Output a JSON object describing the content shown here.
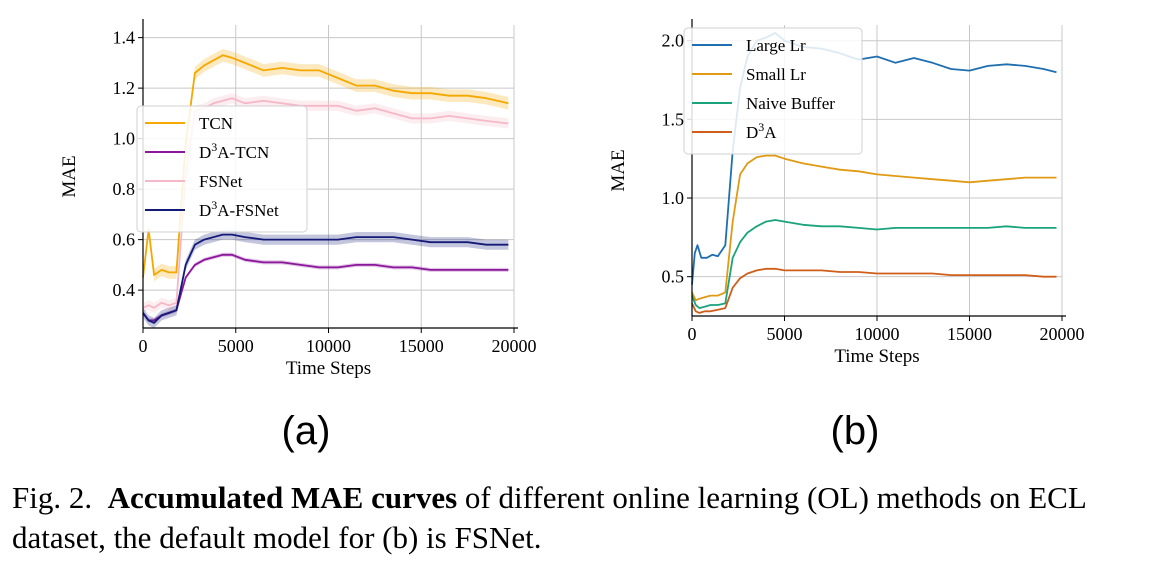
{
  "figure": {
    "caption_prefix": "Fig. 2.",
    "caption_bold": "Accumulated MAE curves",
    "caption_rest": " of different online learning (OL) methods on ECL dataset, the default model for (b) is FSNet."
  },
  "chart_data": [
    {
      "type": "line",
      "panel_label": "(a)",
      "xlabel": "Time Steps",
      "ylabel": "MAE",
      "xlim": [
        0,
        20000
      ],
      "ylim": [
        0.25,
        1.45
      ],
      "xticks": [
        0,
        5000,
        10000,
        15000,
        20000
      ],
      "xtick_labels": [
        "0",
        "5000",
        "10000",
        "15000",
        "20000"
      ],
      "yticks": [
        0.4,
        0.6,
        0.8,
        1.0,
        1.2,
        1.4
      ],
      "ytick_labels": [
        "0.4",
        "0.6",
        "0.8",
        "1.0",
        "1.2",
        "1.4"
      ],
      "grid": true,
      "legend_position": "center-left",
      "series": [
        {
          "name": "TCN",
          "legend_base": "TCN",
          "legend_sup": "",
          "legend_tail": "",
          "color": "#f5a800",
          "band": 0.025,
          "x": [
            0,
            300,
            600,
            1000,
            1400,
            1800,
            2300,
            2800,
            3300,
            3800,
            4300,
            4800,
            5500,
            6500,
            7500,
            8500,
            9500,
            10500,
            11500,
            12500,
            13500,
            14500,
            15500,
            16500,
            17500,
            18500,
            19700
          ],
          "y": [
            0.45,
            0.64,
            0.46,
            0.48,
            0.47,
            0.47,
            0.98,
            1.26,
            1.29,
            1.31,
            1.33,
            1.32,
            1.3,
            1.27,
            1.28,
            1.27,
            1.27,
            1.24,
            1.21,
            1.21,
            1.19,
            1.18,
            1.18,
            1.17,
            1.17,
            1.16,
            1.14
          ]
        },
        {
          "name": "D3A-TCN",
          "legend_base": "D",
          "legend_sup": "3",
          "legend_tail": "A-TCN",
          "color": "#8b189a",
          "band": 0.008,
          "x": [
            0,
            300,
            600,
            1000,
            1400,
            1800,
            2300,
            2800,
            3300,
            3800,
            4300,
            4800,
            5500,
            6500,
            7500,
            8500,
            9500,
            10500,
            11500,
            12500,
            13500,
            14500,
            15500,
            16500,
            17500,
            18500,
            19700
          ],
          "y": [
            0.31,
            0.28,
            0.28,
            0.3,
            0.31,
            0.32,
            0.45,
            0.5,
            0.52,
            0.53,
            0.54,
            0.54,
            0.52,
            0.51,
            0.51,
            0.5,
            0.49,
            0.49,
            0.5,
            0.5,
            0.49,
            0.49,
            0.48,
            0.48,
            0.48,
            0.48,
            0.48
          ]
        },
        {
          "name": "FSNet",
          "legend_base": "FSNet",
          "legend_sup": "",
          "legend_tail": "",
          "color": "#f5b8c8",
          "band": 0.02,
          "x": [
            0,
            300,
            600,
            1000,
            1400,
            1800,
            2300,
            2800,
            3300,
            3800,
            4300,
            4800,
            5500,
            6500,
            7500,
            8500,
            9500,
            10500,
            11500,
            12500,
            13500,
            14500,
            15500,
            16500,
            17500,
            18500,
            19700
          ],
          "y": [
            0.33,
            0.34,
            0.33,
            0.35,
            0.34,
            0.35,
            0.85,
            1.11,
            1.12,
            1.14,
            1.15,
            1.16,
            1.14,
            1.15,
            1.14,
            1.13,
            1.13,
            1.13,
            1.11,
            1.12,
            1.1,
            1.08,
            1.08,
            1.09,
            1.08,
            1.07,
            1.06
          ]
        },
        {
          "name": "D3A-FSNet",
          "legend_base": "D",
          "legend_sup": "3",
          "legend_tail": "A-FSNet",
          "color": "#141a78",
          "band": 0.02,
          "x": [
            0,
            300,
            600,
            1000,
            1400,
            1800,
            2300,
            2800,
            3300,
            3800,
            4300,
            4800,
            5500,
            6500,
            7500,
            8500,
            9500,
            10500,
            11500,
            12500,
            13500,
            14500,
            15500,
            16500,
            17500,
            18500,
            19700
          ],
          "y": [
            0.31,
            0.28,
            0.27,
            0.3,
            0.31,
            0.32,
            0.5,
            0.58,
            0.6,
            0.61,
            0.62,
            0.62,
            0.61,
            0.6,
            0.6,
            0.6,
            0.6,
            0.6,
            0.61,
            0.61,
            0.61,
            0.6,
            0.59,
            0.59,
            0.59,
            0.58,
            0.58
          ]
        }
      ]
    },
    {
      "type": "line",
      "panel_label": "(b)",
      "xlabel": "Time Steps",
      "ylabel": "MAE",
      "xlim": [
        0,
        20000
      ],
      "ylim": [
        0.25,
        2.1
      ],
      "xticks": [
        0,
        5000,
        10000,
        15000,
        20000
      ],
      "xtick_labels": [
        "0",
        "5000",
        "10000",
        "15000",
        "20000"
      ],
      "yticks": [
        0.5,
        1.0,
        1.5,
        2.0
      ],
      "ytick_labels": [
        "0.5",
        "1.0",
        "1.5",
        "2.0"
      ],
      "grid": true,
      "legend_position": "upper-left",
      "series": [
        {
          "name": "Large Lr",
          "legend_base": "Large Lr",
          "legend_sup": "",
          "legend_tail": "",
          "color": "#1f6fb0",
          "x": [
            0,
            150,
            300,
            500,
            800,
            1100,
            1400,
            1800,
            2200,
            2600,
            3000,
            3500,
            4000,
            4500,
            5000,
            6000,
            7000,
            8000,
            9000,
            10000,
            11000,
            12000,
            13000,
            14000,
            15000,
            16000,
            17000,
            18000,
            19000,
            19700
          ],
          "y": [
            0.45,
            0.65,
            0.7,
            0.62,
            0.62,
            0.64,
            0.63,
            0.7,
            1.3,
            1.7,
            1.9,
            2.0,
            2.02,
            2.05,
            2.0,
            1.96,
            1.95,
            1.92,
            1.88,
            1.9,
            1.86,
            1.89,
            1.86,
            1.82,
            1.81,
            1.84,
            1.85,
            1.84,
            1.82,
            1.8
          ]
        },
        {
          "name": "Small Lr",
          "legend_base": "Small Lr",
          "legend_sup": "",
          "legend_tail": "",
          "color": "#e09a14",
          "x": [
            0,
            200,
            400,
            700,
            1000,
            1400,
            1800,
            2200,
            2600,
            3000,
            3500,
            4000,
            4500,
            5000,
            6000,
            7000,
            8000,
            9000,
            10000,
            11000,
            12000,
            13000,
            14000,
            15000,
            16000,
            17000,
            18000,
            19000,
            19700
          ],
          "y": [
            0.4,
            0.35,
            0.36,
            0.37,
            0.38,
            0.38,
            0.4,
            0.85,
            1.15,
            1.22,
            1.26,
            1.27,
            1.27,
            1.25,
            1.22,
            1.2,
            1.18,
            1.17,
            1.15,
            1.14,
            1.13,
            1.12,
            1.11,
            1.1,
            1.11,
            1.12,
            1.13,
            1.13,
            1.13
          ]
        },
        {
          "name": "Naive Buffer",
          "legend_base": "Naive Buffer",
          "legend_sup": "",
          "legend_tail": "",
          "color": "#1aa37c",
          "x": [
            0,
            200,
            400,
            700,
            1000,
            1400,
            1800,
            2200,
            2600,
            3000,
            3500,
            4000,
            4500,
            5000,
            6000,
            7000,
            8000,
            9000,
            10000,
            11000,
            12000,
            13000,
            14000,
            15000,
            16000,
            17000,
            18000,
            19000,
            19700
          ],
          "y": [
            0.38,
            0.32,
            0.3,
            0.31,
            0.32,
            0.32,
            0.33,
            0.62,
            0.72,
            0.78,
            0.82,
            0.85,
            0.86,
            0.85,
            0.83,
            0.82,
            0.82,
            0.81,
            0.8,
            0.81,
            0.81,
            0.81,
            0.81,
            0.81,
            0.81,
            0.82,
            0.81,
            0.81,
            0.81
          ]
        },
        {
          "name": "D3A",
          "legend_base": "D",
          "legend_sup": "3",
          "legend_tail": "A",
          "color": "#cf5e1a",
          "x": [
            0,
            200,
            400,
            700,
            1000,
            1400,
            1800,
            2200,
            2600,
            3000,
            3500,
            4000,
            4500,
            5000,
            6000,
            7000,
            8000,
            9000,
            10000,
            11000,
            12000,
            13000,
            14000,
            15000,
            16000,
            17000,
            18000,
            19000,
            19700
          ],
          "y": [
            0.33,
            0.28,
            0.27,
            0.28,
            0.28,
            0.29,
            0.3,
            0.43,
            0.49,
            0.52,
            0.54,
            0.55,
            0.55,
            0.54,
            0.54,
            0.54,
            0.53,
            0.53,
            0.52,
            0.52,
            0.52,
            0.52,
            0.51,
            0.51,
            0.51,
            0.51,
            0.51,
            0.5,
            0.5
          ]
        }
      ]
    }
  ]
}
